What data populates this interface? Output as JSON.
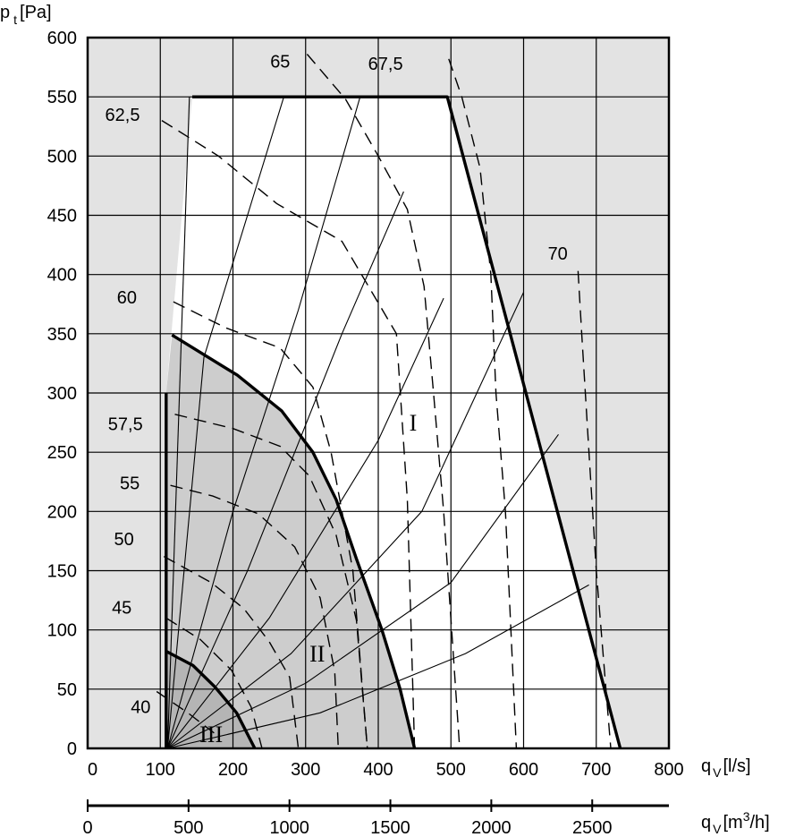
{
  "chart_data": {
    "type": "line",
    "title": "",
    "ylabel": {
      "symbol": "p",
      "subscript": "t",
      "unit": "[Pa]"
    },
    "xlabel": {
      "symbol": "q",
      "subscript": "V",
      "unit": "[l/s]"
    },
    "x2label": {
      "symbol": "q",
      "subscript": "V",
      "unit_prefix": "[m",
      "unit_exp": "3",
      "unit_suffix": "/h]"
    },
    "xlim": [
      0,
      800
    ],
    "ylim": [
      0,
      600
    ],
    "x2lim_m3h": [
      0,
      2880
    ],
    "yticks": [
      0,
      50,
      100,
      150,
      200,
      250,
      300,
      350,
      400,
      450,
      500,
      550,
      600
    ],
    "xticks": [
      0,
      100,
      200,
      300,
      400,
      500,
      600,
      700,
      800
    ],
    "x2ticks": [
      0,
      500,
      1000,
      1500,
      2000,
      2500
    ],
    "grid": true,
    "regions": [
      {
        "name": "I",
        "label": "I",
        "label_at": [
          448,
          275
        ],
        "boundary": [
          [
            144,
            550
          ],
          [
            495,
            550
          ],
          [
            733,
            0
          ],
          [
            120,
            0
          ],
          [
            108,
            0
          ],
          [
            108,
            300
          ],
          [
            144,
            550
          ]
        ]
      },
      {
        "name": "II",
        "label": "II",
        "label_at": [
          316,
          80
        ],
        "boundary": [
          [
            116,
            349
          ],
          [
            206,
            315
          ],
          [
            267,
            285
          ],
          [
            310,
            250
          ],
          [
            342,
            210
          ],
          [
            370,
            160
          ],
          [
            405,
            100
          ],
          [
            430,
            50
          ],
          [
            450,
            0
          ],
          [
            108,
            0
          ],
          [
            108,
            300
          ],
          [
            116,
            349
          ]
        ]
      },
      {
        "name": "III",
        "label": "III",
        "label_at": [
          170,
          12
        ],
        "boundary": [
          [
            108,
            82
          ],
          [
            145,
            70
          ],
          [
            175,
            52
          ],
          [
            205,
            30
          ],
          [
            230,
            0
          ],
          [
            108,
            0
          ],
          [
            108,
            82
          ]
        ]
      }
    ],
    "series_efficiency_bands": [
      {
        "name": "40",
        "label": "40",
        "label_at": [
          73,
          35
        ],
        "points": [
          [
            95,
            48
          ],
          [
            138,
            30
          ],
          [
            174,
            13
          ]
        ]
      },
      {
        "name": "45",
        "label": "45",
        "label_at": [
          47,
          119
        ],
        "points": [
          [
            108,
            110
          ],
          [
            155,
            92
          ],
          [
            198,
            66
          ],
          [
            225,
            35
          ],
          [
            240,
            0
          ]
        ]
      },
      {
        "name": "50",
        "label": "50",
        "label_at": [
          50,
          177
        ],
        "points": [
          [
            105,
            162
          ],
          [
            170,
            140
          ],
          [
            215,
            118
          ],
          [
            250,
            90
          ],
          [
            278,
            60
          ],
          [
            290,
            0
          ]
        ]
      },
      {
        "name": "55",
        "label": "55",
        "label_at": [
          58,
          224
        ],
        "points": [
          [
            114,
            222
          ],
          [
            172,
            213
          ],
          [
            235,
            198
          ],
          [
            285,
            170
          ],
          [
            320,
            127
          ],
          [
            340,
            65
          ],
          [
            345,
            0
          ]
        ]
      },
      {
        "name": "57,5",
        "label": "57,5",
        "label_at": [
          52,
          274
        ],
        "points": [
          [
            120,
            282
          ],
          [
            200,
            270
          ],
          [
            265,
            255
          ],
          [
            305,
            230
          ],
          [
            342,
            180
          ],
          [
            370,
            108
          ],
          [
            385,
            0
          ]
        ]
      },
      {
        "name": "60",
        "label": "60",
        "label_at": [
          54,
          381
        ],
        "points": [
          [
            118,
            377
          ],
          [
            190,
            355
          ],
          [
            265,
            338
          ],
          [
            310,
            305
          ],
          [
            335,
            250
          ],
          [
            365,
            150
          ],
          [
            385,
            0
          ]
        ]
      },
      {
        "name": "62,5",
        "label": "62,5",
        "label_at": [
          48,
          535
        ],
        "points": [
          [
            102,
            530
          ],
          [
            180,
            500
          ],
          [
            260,
            460
          ],
          [
            350,
            428
          ],
          [
            425,
            350
          ],
          [
            440,
            210
          ],
          [
            450,
            0
          ]
        ]
      },
      {
        "name": "65",
        "label": "65",
        "label_at": [
          265,
          580
        ],
        "points": [
          [
            302,
            586
          ],
          [
            355,
            548
          ],
          [
            400,
            500
          ],
          [
            440,
            455
          ],
          [
            463,
            390
          ],
          [
            476,
            300
          ],
          [
            490,
            200
          ],
          [
            512,
            0
          ]
        ]
      },
      {
        "name": "67,5",
        "label": "67,5",
        "label_at": [
          410,
          578
        ],
        "points": [
          [
            497,
            582
          ],
          [
            515,
            550
          ],
          [
            540,
            490
          ],
          [
            555,
            400
          ],
          [
            562,
            300
          ],
          [
            575,
            200
          ],
          [
            590,
            0
          ]
        ]
      },
      {
        "name": "70",
        "label": "70",
        "label_at": [
          647,
          418
        ],
        "points": [
          [
            675,
            403
          ],
          [
            680,
            350
          ],
          [
            690,
            250
          ],
          [
            700,
            150
          ],
          [
            720,
            0
          ]
        ]
      }
    ],
    "series_system_curves": [
      {
        "name": "sc1",
        "points": [
          [
            110,
            0
          ],
          [
            140,
            550
          ]
        ]
      },
      {
        "name": "sc2",
        "points": [
          [
            110,
            0
          ],
          [
            160,
            330
          ],
          [
            270,
            550
          ]
        ]
      },
      {
        "name": "sc3",
        "points": [
          [
            110,
            0
          ],
          [
            200,
            200
          ],
          [
            290,
            370
          ],
          [
            375,
            550
          ]
        ]
      },
      {
        "name": "sc4",
        "points": [
          [
            110,
            0
          ],
          [
            220,
            150
          ],
          [
            350,
            350
          ],
          [
            435,
            470
          ]
        ]
      },
      {
        "name": "sc5",
        "points": [
          [
            110,
            0
          ],
          [
            250,
            110
          ],
          [
            400,
            260
          ],
          [
            490,
            380
          ]
        ]
      },
      {
        "name": "sc6",
        "points": [
          [
            110,
            0
          ],
          [
            280,
            80
          ],
          [
            460,
            200
          ],
          [
            600,
            385
          ]
        ]
      },
      {
        "name": "sc7",
        "points": [
          [
            110,
            0
          ],
          [
            300,
            55
          ],
          [
            500,
            140
          ],
          [
            648,
            265
          ]
        ]
      },
      {
        "name": "sc8",
        "points": [
          [
            110,
            0
          ],
          [
            320,
            30
          ],
          [
            520,
            80
          ],
          [
            690,
            138
          ]
        ]
      }
    ],
    "envelopes": [
      {
        "name": "region-I-envelope",
        "points": [
          [
            144,
            550
          ],
          [
            495,
            550
          ],
          [
            733,
            0
          ]
        ]
      },
      {
        "name": "region-II-envelope",
        "points": [
          [
            116,
            349
          ],
          [
            206,
            315
          ],
          [
            267,
            285
          ],
          [
            310,
            250
          ],
          [
            342,
            210
          ],
          [
            370,
            160
          ],
          [
            405,
            100
          ],
          [
            430,
            50
          ],
          [
            450,
            0
          ]
        ]
      },
      {
        "name": "region-III-envelope",
        "points": [
          [
            108,
            82
          ],
          [
            145,
            70
          ],
          [
            175,
            52
          ],
          [
            205,
            30
          ],
          [
            230,
            0
          ]
        ]
      },
      {
        "name": "minimum-flow-line",
        "points": [
          [
            108,
            0
          ],
          [
            108,
            300
          ]
        ]
      }
    ]
  }
}
